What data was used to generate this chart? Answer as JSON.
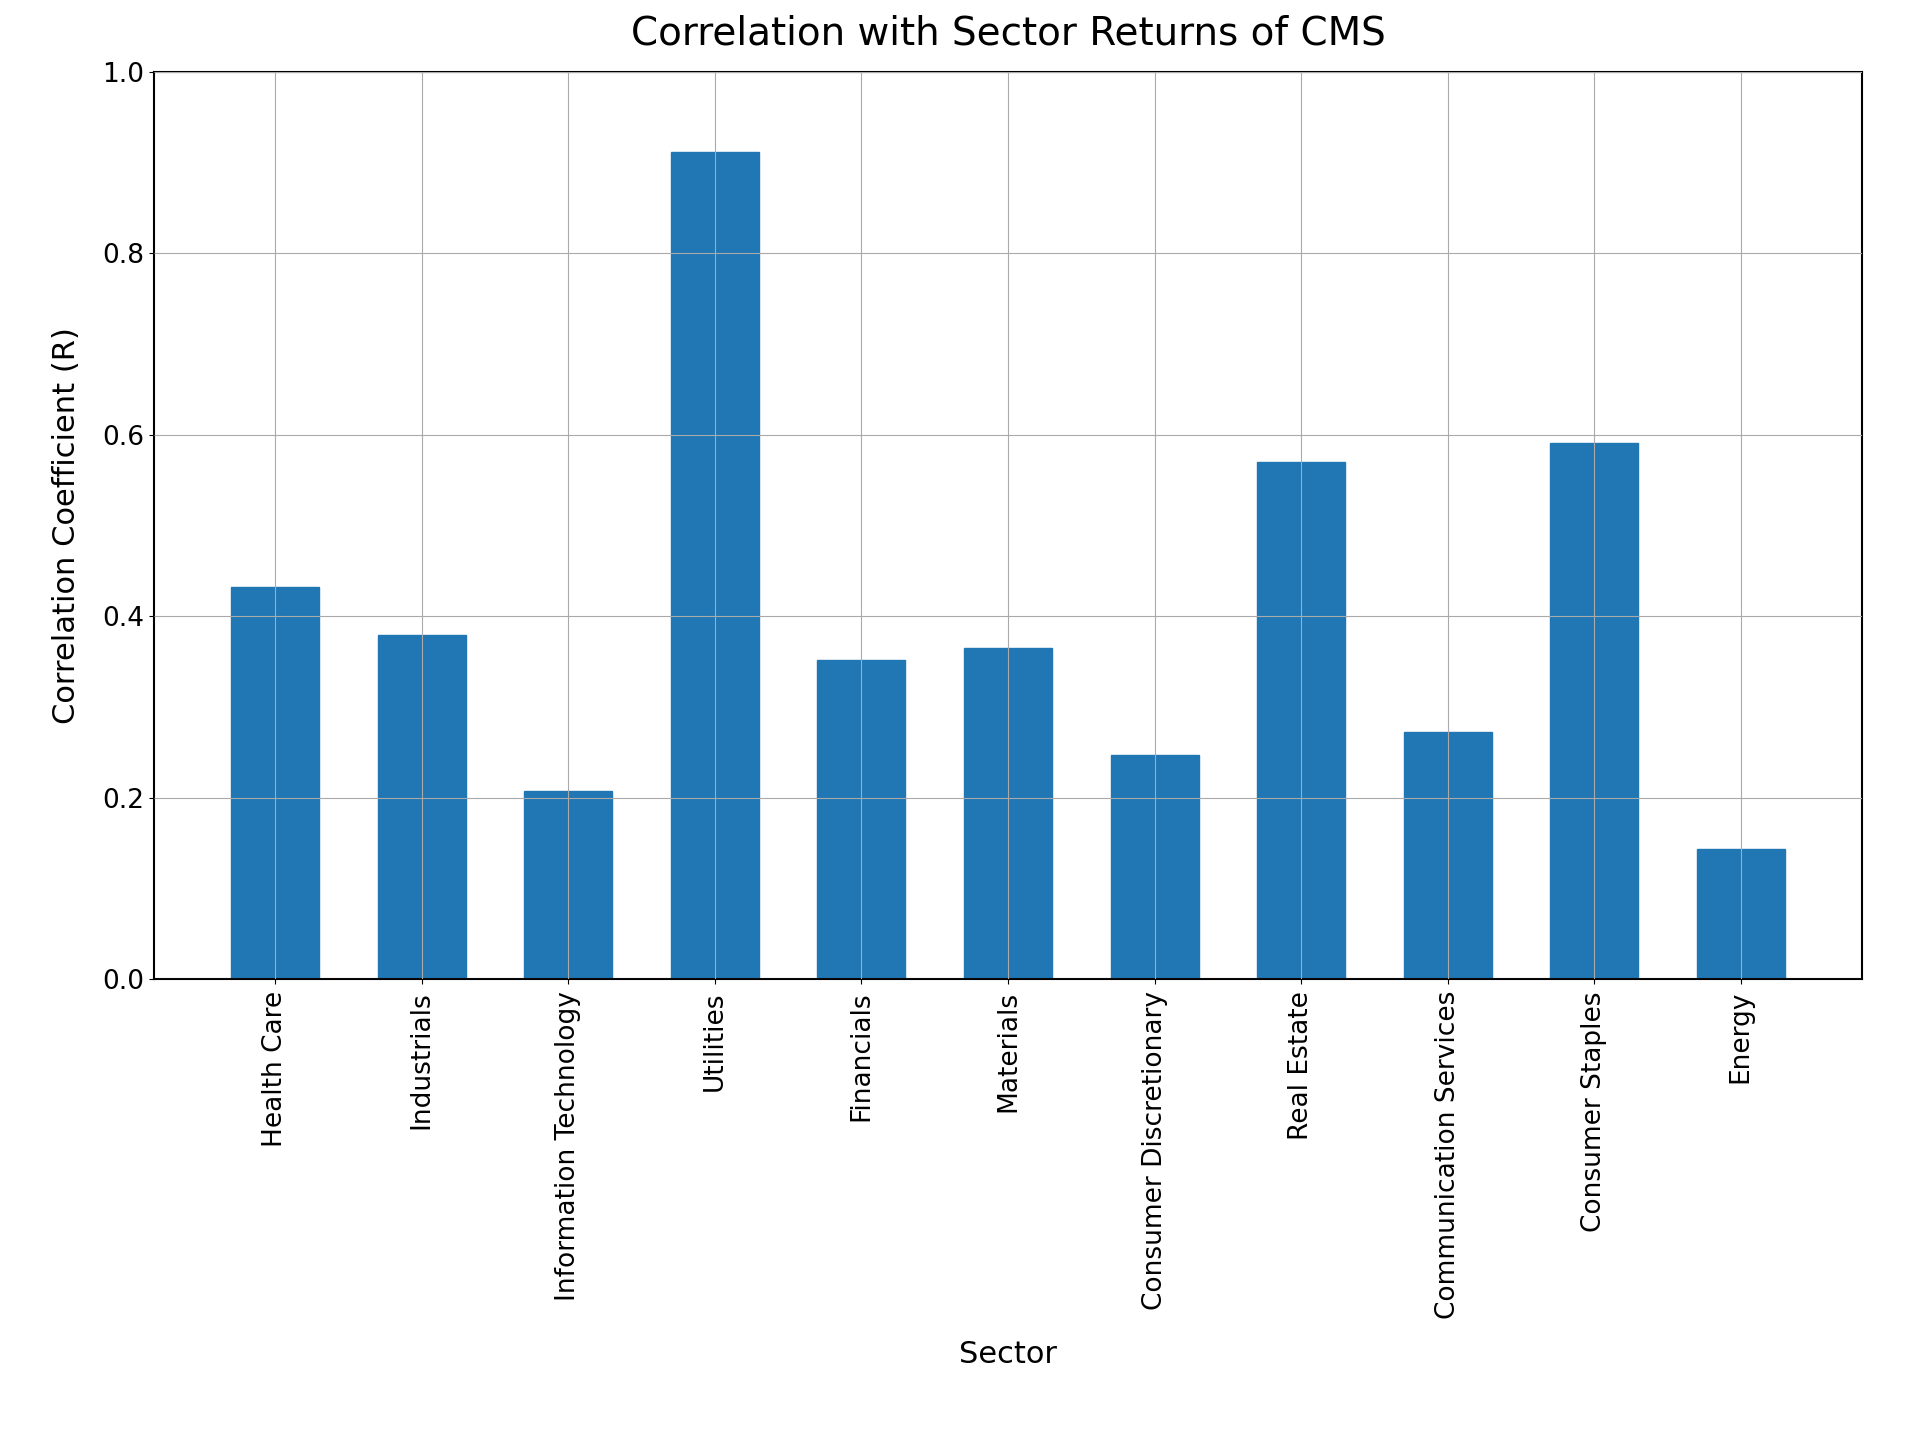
{
  "title": "Correlation with Sector Returns of CMS",
  "xlabel": "Sector",
  "ylabel": "Correlation Coefficient (R)",
  "categories": [
    "Health Care",
    "Industrials",
    "Information Technology",
    "Utilities",
    "Financials",
    "Materials",
    "Consumer Discretionary",
    "Real Estate",
    "Communication Services",
    "Consumer Staples",
    "Energy"
  ],
  "values": [
    0.432,
    0.379,
    0.207,
    0.912,
    0.352,
    0.365,
    0.247,
    0.57,
    0.272,
    0.591,
    0.143
  ],
  "bar_color": "#2077b4",
  "ylim": [
    0.0,
    1.0
  ],
  "yticks": [
    0.0,
    0.2,
    0.4,
    0.6,
    0.8,
    1.0
  ],
  "title_fontsize": 28,
  "label_fontsize": 22,
  "tick_fontsize": 19,
  "xtick_fontsize": 19,
  "background_color": "#ffffff",
  "grid_color": "#aaaaaa"
}
